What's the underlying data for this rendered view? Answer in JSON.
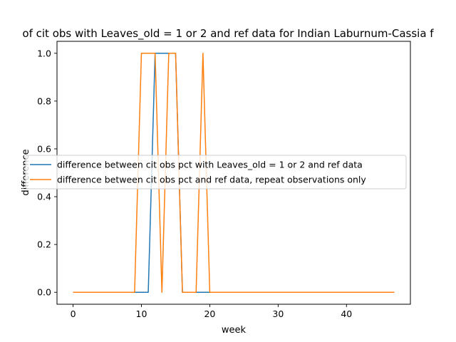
{
  "chart_data": {
    "type": "line",
    "title": "of cit obs with Leaves_old = 1 or 2 and ref data for Indian Laburnum-Cassia f",
    "xlabel": "week",
    "ylabel": "difference",
    "xlim": [
      -2.35,
      49.35
    ],
    "ylim": [
      -0.05,
      1.05
    ],
    "xticks": [
      0,
      10,
      20,
      30,
      40
    ],
    "yticks": [
      0.0,
      0.2,
      0.4,
      0.6,
      0.8,
      1.0
    ],
    "xtick_labels": [
      "0",
      "10",
      "20",
      "30",
      "40"
    ],
    "ytick_labels": [
      "0.0",
      "0.2",
      "0.4",
      "0.6",
      "0.8",
      "1.0"
    ],
    "legend_position": "center-left",
    "x": [
      0,
      1,
      2,
      3,
      4,
      5,
      6,
      7,
      8,
      9,
      10,
      11,
      12,
      13,
      14,
      15,
      16,
      17,
      18,
      19,
      20,
      21,
      22,
      23,
      24,
      25,
      26,
      27,
      28,
      29,
      30,
      31,
      32,
      33,
      34,
      35,
      36,
      37,
      38,
      39,
      40,
      41,
      42,
      43,
      44,
      45,
      46,
      47
    ],
    "series": [
      {
        "name": "difference between cit obs pct with Leaves_old = 1 or 2 and ref data",
        "color": "#1f77b4",
        "values": [
          0,
          0,
          0,
          0,
          0,
          0,
          0,
          0,
          0,
          0,
          0,
          0,
          1,
          1,
          1,
          1,
          0,
          0,
          0,
          0,
          0,
          0,
          0,
          0,
          0,
          0,
          0,
          0,
          0,
          0,
          0,
          0,
          0,
          0,
          0,
          0,
          0,
          0,
          0,
          0,
          0,
          0,
          0,
          0,
          0,
          0,
          0,
          0
        ]
      },
      {
        "name": "difference between cit obs pct and ref data, repeat observations only",
        "color": "#ff7f0e",
        "values": [
          0,
          0,
          0,
          0,
          0,
          0,
          0,
          0,
          0,
          0,
          1,
          1,
          1,
          0,
          1,
          1,
          0,
          0,
          0,
          1,
          0,
          0,
          0,
          0,
          0,
          0,
          0,
          0,
          0,
          0,
          0,
          0,
          0,
          0,
          0,
          0,
          0,
          0,
          0,
          0,
          0,
          0,
          0,
          0,
          0,
          0,
          0,
          0
        ]
      }
    ]
  }
}
